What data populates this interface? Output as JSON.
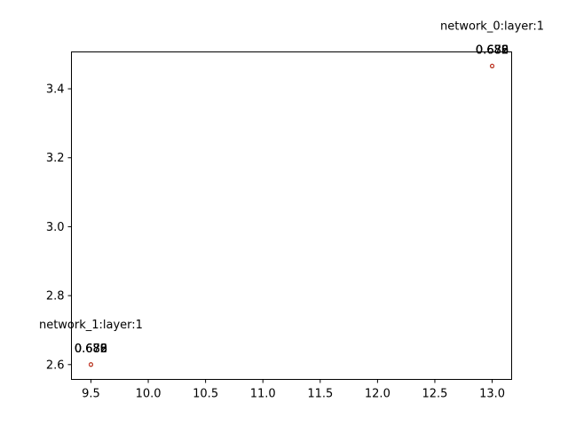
{
  "chart_data": {
    "type": "scatter",
    "title": "",
    "xlabel": "",
    "ylabel": "",
    "xlim": [
      9.33,
      13.17
    ],
    "ylim": [
      2.557,
      3.507
    ],
    "x_ticks": [
      9.5,
      10.0,
      10.5,
      11.0,
      11.5,
      12.0,
      12.5,
      13.0
    ],
    "x_tick_labels": [
      "9.5",
      "10.0",
      "10.5",
      "11.0",
      "11.5",
      "12.0",
      "12.5",
      "13.0"
    ],
    "y_ticks": [
      2.6,
      2.8,
      3.0,
      3.2,
      3.4
    ],
    "y_tick_labels": [
      "2.6",
      "2.8",
      "3.0",
      "3.2",
      "3.4"
    ],
    "grid": false,
    "series": [
      {
        "color": "#1f77b4",
        "points": [
          {
            "x": 13.0,
            "y": 3.466,
            "label": "0.688"
          },
          {
            "x": 9.5,
            "y": 2.6,
            "label": "0.688"
          }
        ]
      },
      {
        "color": "#ff7f0e",
        "points": [
          {
            "x": 13.0,
            "y": 3.466,
            "label": "0.682"
          },
          {
            "x": 9.5,
            "y": 2.6,
            "label": "0.682"
          }
        ]
      },
      {
        "color": "#2ca02c",
        "points": [
          {
            "x": 13.0,
            "y": 3.466,
            "label": "0.679"
          },
          {
            "x": 9.5,
            "y": 2.6,
            "label": "0.679"
          }
        ]
      },
      {
        "color": "#d62728",
        "points": [
          {
            "x": 13.0,
            "y": 3.466,
            "label": "0.686"
          },
          {
            "x": 9.5,
            "y": 2.6,
            "label": "0.686"
          }
        ]
      }
    ],
    "annotations": [
      {
        "text": "network_0:layer:1",
        "x": 13.0,
        "y": 3.466
      },
      {
        "text": "network_1:layer:1",
        "x": 9.5,
        "y": 2.6
      }
    ]
  }
}
